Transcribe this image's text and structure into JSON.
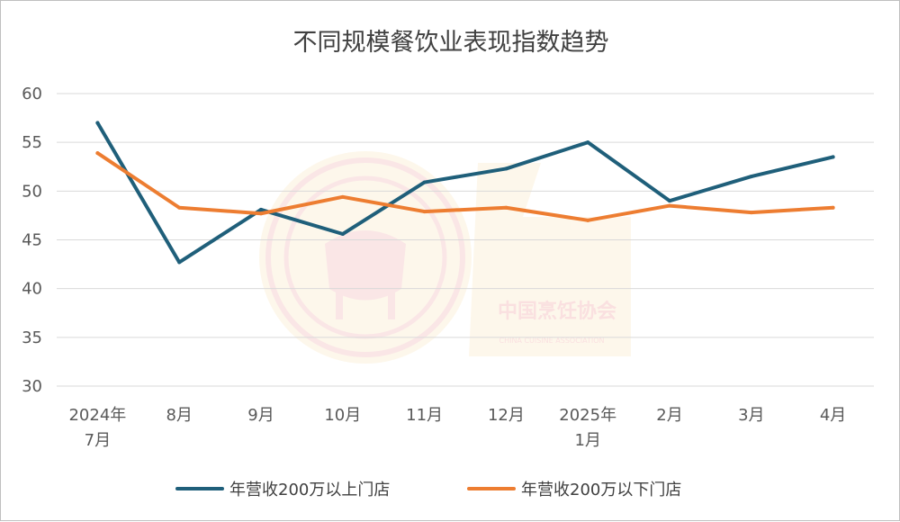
{
  "chart_data": {
    "type": "line",
    "title": "不同规模餐饮业表现指数趋势",
    "categories": [
      [
        "2024年",
        "7月"
      ],
      [
        "8月"
      ],
      [
        "9月"
      ],
      [
        "10月"
      ],
      [
        "11月"
      ],
      [
        "12月"
      ],
      [
        "2025年",
        "1月"
      ],
      [
        "2月"
      ],
      [
        "3月"
      ],
      [
        "4月"
      ]
    ],
    "y_ticks": [
      "60",
      "55",
      "50",
      "45",
      "40",
      "35",
      "30"
    ],
    "ylim": [
      30,
      60
    ],
    "grid": true,
    "legend_position": "bottom",
    "series": [
      {
        "name": "年营收200万以上门店",
        "color": "#1f5f7a",
        "values": [
          57.0,
          42.7,
          48.1,
          45.6,
          50.9,
          52.3,
          55.0,
          49.0,
          51.5,
          53.5
        ]
      },
      {
        "name": "年营收200万以下门店",
        "color": "#ed7d31",
        "values": [
          53.9,
          48.3,
          47.7,
          49.4,
          47.9,
          48.3,
          47.0,
          48.5,
          47.8,
          48.3
        ]
      }
    ],
    "watermark": {
      "text": "中国烹饪协会",
      "subtext": "CHINA CUISINE ASSOCIATION"
    }
  }
}
